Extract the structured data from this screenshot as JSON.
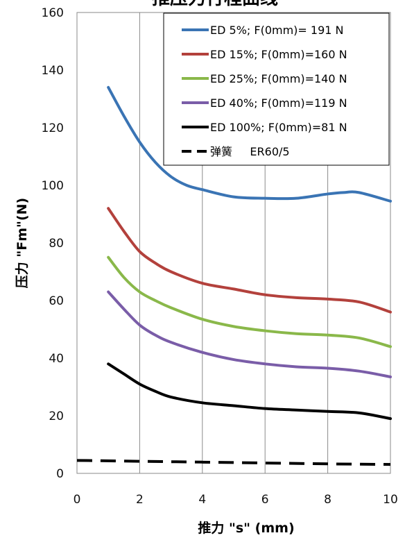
{
  "chart_data": {
    "type": "line",
    "title": "推压力行程曲线",
    "xlabel": "推力 \"s\" (mm)",
    "ylabel": "压力 \"Fm\"(N)",
    "xlim": [
      0,
      10
    ],
    "ylim": [
      0,
      160
    ],
    "x_ticks": [
      "0",
      "2",
      "4",
      "6",
      "8",
      "10"
    ],
    "y_ticks": [
      "0",
      "20",
      "40",
      "60",
      "80",
      "100",
      "120",
      "140",
      "160"
    ],
    "grid": "vertical",
    "legend_position": "top-right",
    "series": [
      {
        "name": "ED 5%; F(0mm)= 191 N",
        "color": "#3a74b4",
        "dash": "solid",
        "x": [
          1,
          1.5,
          2,
          2.5,
          3,
          3.5,
          4,
          5,
          6,
          7,
          8,
          8.5,
          9,
          10
        ],
        "y": [
          134,
          124,
          115,
          108,
          103,
          100,
          98.5,
          96,
          95.5,
          95.5,
          97,
          97.5,
          97.5,
          94.5
        ]
      },
      {
        "name": "ED 15%; F(0mm)=160 N",
        "color": "#b3413c",
        "dash": "solid",
        "x": [
          1,
          1.5,
          2,
          2.5,
          3,
          4,
          5,
          6,
          7,
          8,
          9,
          10
        ],
        "y": [
          92,
          84,
          77,
          73,
          70,
          66,
          64,
          62,
          61,
          60.5,
          59.5,
          56
        ]
      },
      {
        "name": "ED 25%; F(0mm)=140 N",
        "color": "#8ab84a",
        "dash": "solid",
        "x": [
          1,
          1.5,
          2,
          2.5,
          3,
          4,
          5,
          6,
          7,
          8,
          9,
          10
        ],
        "y": [
          75,
          68,
          63,
          60,
          57.5,
          53.5,
          51,
          49.5,
          48.5,
          48,
          47,
          44
        ]
      },
      {
        "name": "ED 40%; F(0mm)=119 N",
        "color": "#7a5da8",
        "dash": "solid",
        "x": [
          1,
          1.5,
          2,
          2.5,
          3,
          4,
          5,
          6,
          7,
          8,
          9,
          10
        ],
        "y": [
          63,
          57,
          51.5,
          48,
          45.5,
          42,
          39.5,
          38,
          37,
          36.5,
          35.5,
          33.5
        ]
      },
      {
        "name": "ED 100%; F(0mm)=81 N",
        "color": "#000000",
        "dash": "solid",
        "x": [
          1,
          1.5,
          2,
          2.5,
          3,
          4,
          5,
          6,
          7,
          8,
          9,
          10
        ],
        "y": [
          38,
          34.5,
          31,
          28.5,
          26.5,
          24.5,
          23.5,
          22.5,
          22,
          21.5,
          21,
          19
        ]
      },
      {
        "name": "弹簧     ER60/5",
        "color": "#000000",
        "dash": "dashed",
        "x": [
          0,
          2,
          4,
          6,
          8,
          10
        ],
        "y": [
          4.5,
          4.2,
          3.9,
          3.6,
          3.3,
          3.1
        ]
      }
    ]
  }
}
